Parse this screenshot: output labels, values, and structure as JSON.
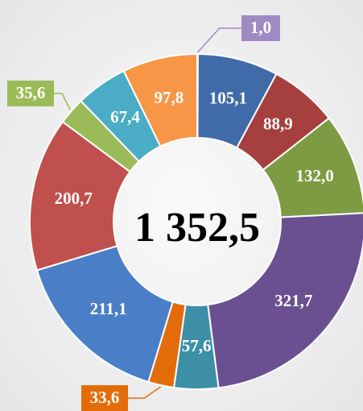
{
  "chart_data": {
    "type": "donut",
    "center_text": "1 352,5",
    "categories": [
      null,
      null,
      null,
      null,
      null,
      null,
      null,
      null,
      null,
      null,
      null,
      null
    ],
    "values": [
      1.0,
      105.1,
      88.9,
      132.0,
      321.7,
      57.6,
      33.6,
      211.1,
      200.7,
      35.6,
      67.4,
      97.8
    ],
    "value_labels": [
      "1,0",
      "105,1",
      "88,9",
      "132,0",
      "321,7",
      "57,6",
      "33,6",
      "211,1",
      "200,7",
      "35,6",
      "67,4",
      "97,8"
    ],
    "colors": [
      "#a08ac4",
      "#3f6ca8",
      "#a5403e",
      "#7d9b43",
      "#6a5090",
      "#3d8fa8",
      "#e36c0a",
      "#4a7fc7",
      "#c0504d",
      "#9bbb59",
      "#4bacc6",
      "#f79646"
    ]
  }
}
